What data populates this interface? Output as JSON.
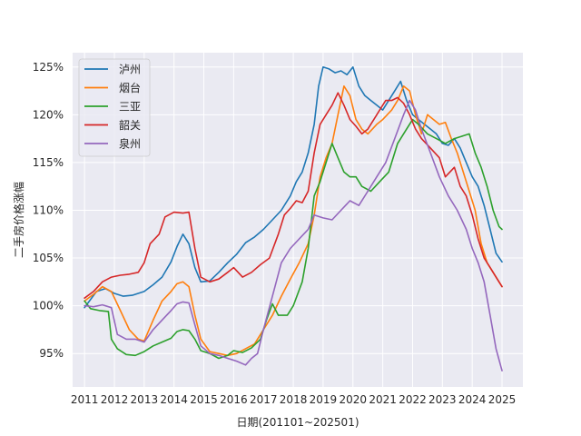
{
  "chart_data": {
    "type": "line",
    "xlabel": "日期(201101~202501)",
    "ylabel": "二手房价格涨幅",
    "xlim": [
      2010.6,
      2025.7
    ],
    "ylim": [
      91.5,
      126.5
    ],
    "xticks": [
      2011,
      2012,
      2013,
      2014,
      2015,
      2016,
      2017,
      2018,
      2019,
      2020,
      2021,
      2022,
      2023,
      2024,
      2025
    ],
    "xtick_labels": [
      "2011",
      "2012",
      "2013",
      "2014",
      "2015",
      "2016",
      "2017",
      "2018",
      "2019",
      "2020",
      "2021",
      "2022",
      "2023",
      "2024",
      "2025"
    ],
    "yticks": [
      95,
      100,
      105,
      110,
      115,
      120,
      125
    ],
    "ytick_labels": [
      "95%",
      "100%",
      "105%",
      "110%",
      "115%",
      "120%",
      "125%"
    ],
    "grid": true,
    "legend_position": "top-left",
    "series": [
      {
        "name": "泸州",
        "color": "#1f77b4",
        "points": [
          [
            2011.0,
            99.8
          ],
          [
            2011.4,
            101.5
          ],
          [
            2011.7,
            101.8
          ],
          [
            2012.0,
            101.3
          ],
          [
            2012.3,
            101.0
          ],
          [
            2012.6,
            101.1
          ],
          [
            2013.0,
            101.5
          ],
          [
            2013.3,
            102.2
          ],
          [
            2013.6,
            103.0
          ],
          [
            2013.9,
            104.6
          ],
          [
            2014.1,
            106.2
          ],
          [
            2014.3,
            107.5
          ],
          [
            2014.5,
            106.5
          ],
          [
            2014.7,
            104.0
          ],
          [
            2014.9,
            102.5
          ],
          [
            2015.2,
            102.6
          ],
          [
            2015.5,
            103.5
          ],
          [
            2015.8,
            104.5
          ],
          [
            2016.1,
            105.4
          ],
          [
            2016.4,
            106.6
          ],
          [
            2016.7,
            107.2
          ],
          [
            2017.0,
            108.0
          ],
          [
            2017.3,
            109.0
          ],
          [
            2017.6,
            110.0
          ],
          [
            2017.9,
            111.5
          ],
          [
            2018.1,
            113.0
          ],
          [
            2018.3,
            114.0
          ],
          [
            2018.5,
            116.0
          ],
          [
            2018.7,
            119.0
          ],
          [
            2018.85,
            123.0
          ],
          [
            2019.0,
            125.0
          ],
          [
            2019.2,
            124.8
          ],
          [
            2019.4,
            124.4
          ],
          [
            2019.6,
            124.6
          ],
          [
            2019.8,
            124.2
          ],
          [
            2020.0,
            125.0
          ],
          [
            2020.2,
            123.0
          ],
          [
            2020.4,
            122.0
          ],
          [
            2020.6,
            121.5
          ],
          [
            2020.8,
            121.0
          ],
          [
            2021.0,
            120.5
          ],
          [
            2021.2,
            121.5
          ],
          [
            2021.4,
            122.5
          ],
          [
            2021.6,
            123.5
          ],
          [
            2021.8,
            121.5
          ],
          [
            2022.0,
            120.0
          ],
          [
            2022.2,
            119.5
          ],
          [
            2022.4,
            119.0
          ],
          [
            2022.6,
            118.5
          ],
          [
            2022.8,
            118.0
          ],
          [
            2023.0,
            117.0
          ],
          [
            2023.2,
            116.8
          ],
          [
            2023.4,
            117.5
          ],
          [
            2023.6,
            116.5
          ],
          [
            2023.8,
            115.0
          ],
          [
            2024.0,
            113.5
          ],
          [
            2024.2,
            112.5
          ],
          [
            2024.4,
            110.5
          ],
          [
            2024.6,
            108.0
          ],
          [
            2024.8,
            105.5
          ],
          [
            2025.0,
            104.6
          ]
        ]
      },
      {
        "name": "烟台",
        "color": "#ff7f0e",
        "points": [
          [
            2011.0,
            100.5
          ],
          [
            2011.3,
            101.2
          ],
          [
            2011.6,
            102.0
          ],
          [
            2011.9,
            101.5
          ],
          [
            2012.2,
            99.5
          ],
          [
            2012.5,
            97.5
          ],
          [
            2012.8,
            96.5
          ],
          [
            2013.0,
            96.3
          ],
          [
            2013.3,
            98.5
          ],
          [
            2013.6,
            100.5
          ],
          [
            2013.9,
            101.5
          ],
          [
            2014.1,
            102.3
          ],
          [
            2014.3,
            102.5
          ],
          [
            2014.5,
            102.0
          ],
          [
            2014.7,
            99.0
          ],
          [
            2014.9,
            96.5
          ],
          [
            2015.2,
            95.2
          ],
          [
            2015.5,
            95.0
          ],
          [
            2015.8,
            94.8
          ],
          [
            2016.1,
            95.0
          ],
          [
            2016.4,
            95.5
          ],
          [
            2016.7,
            96.0
          ],
          [
            2017.0,
            97.5
          ],
          [
            2017.3,
            99.0
          ],
          [
            2017.6,
            101.0
          ],
          [
            2017.9,
            102.8
          ],
          [
            2018.2,
            104.5
          ],
          [
            2018.5,
            106.5
          ],
          [
            2018.7,
            109.5
          ],
          [
            2018.9,
            113.5
          ],
          [
            2019.1,
            115.5
          ],
          [
            2019.3,
            117.0
          ],
          [
            2019.5,
            120.0
          ],
          [
            2019.7,
            123.0
          ],
          [
            2019.9,
            122.0
          ],
          [
            2020.1,
            119.5
          ],
          [
            2020.3,
            118.5
          ],
          [
            2020.5,
            118.0
          ],
          [
            2020.8,
            119.0
          ],
          [
            2021.0,
            119.5
          ],
          [
            2021.3,
            120.5
          ],
          [
            2021.5,
            121.5
          ],
          [
            2021.7,
            123.0
          ],
          [
            2021.9,
            122.5
          ],
          [
            2022.1,
            120.0
          ],
          [
            2022.3,
            118.0
          ],
          [
            2022.5,
            120.0
          ],
          [
            2022.7,
            119.5
          ],
          [
            2022.9,
            119.0
          ],
          [
            2023.1,
            119.2
          ],
          [
            2023.3,
            117.5
          ],
          [
            2023.5,
            116.0
          ],
          [
            2023.7,
            114.0
          ],
          [
            2023.9,
            112.0
          ],
          [
            2024.1,
            110.0
          ],
          [
            2024.3,
            106.5
          ],
          [
            2024.5,
            104.5
          ],
          [
            2024.7,
            103.5
          ],
          [
            2024.9,
            102.5
          ],
          [
            2025.0,
            102.0
          ]
        ]
      },
      {
        "name": "三亚",
        "color": "#2ca02c",
        "points": [
          [
            2011.0,
            100.5
          ],
          [
            2011.2,
            99.7
          ],
          [
            2011.5,
            99.5
          ],
          [
            2011.8,
            99.4
          ],
          [
            2011.9,
            96.5
          ],
          [
            2012.1,
            95.5
          ],
          [
            2012.4,
            94.9
          ],
          [
            2012.7,
            94.8
          ],
          [
            2013.0,
            95.2
          ],
          [
            2013.3,
            95.8
          ],
          [
            2013.6,
            96.2
          ],
          [
            2013.9,
            96.6
          ],
          [
            2014.1,
            97.3
          ],
          [
            2014.3,
            97.5
          ],
          [
            2014.5,
            97.4
          ],
          [
            2014.7,
            96.5
          ],
          [
            2014.9,
            95.3
          ],
          [
            2015.2,
            95.0
          ],
          [
            2015.5,
            94.5
          ],
          [
            2015.8,
            94.8
          ],
          [
            2016.0,
            95.3
          ],
          [
            2016.3,
            95.1
          ],
          [
            2016.6,
            95.6
          ],
          [
            2016.9,
            96.5
          ],
          [
            2017.1,
            98.5
          ],
          [
            2017.3,
            100.2
          ],
          [
            2017.5,
            99.0
          ],
          [
            2017.8,
            99.0
          ],
          [
            2018.0,
            100.0
          ],
          [
            2018.3,
            102.5
          ],
          [
            2018.5,
            106.0
          ],
          [
            2018.7,
            111.5
          ],
          [
            2018.9,
            113.0
          ],
          [
            2019.1,
            115.0
          ],
          [
            2019.3,
            117.0
          ],
          [
            2019.5,
            115.5
          ],
          [
            2019.7,
            114.0
          ],
          [
            2019.9,
            113.5
          ],
          [
            2020.1,
            113.5
          ],
          [
            2020.3,
            112.5
          ],
          [
            2020.6,
            112.0
          ],
          [
            2020.9,
            113.0
          ],
          [
            2021.2,
            114.0
          ],
          [
            2021.5,
            117.0
          ],
          [
            2021.8,
            118.5
          ],
          [
            2022.0,
            119.5
          ],
          [
            2022.2,
            119.0
          ],
          [
            2022.5,
            118.0
          ],
          [
            2022.8,
            117.5
          ],
          [
            2023.1,
            117.0
          ],
          [
            2023.4,
            117.5
          ],
          [
            2023.7,
            117.8
          ],
          [
            2023.9,
            118.0
          ],
          [
            2024.1,
            116.0
          ],
          [
            2024.3,
            114.5
          ],
          [
            2024.5,
            112.5
          ],
          [
            2024.7,
            110.0
          ],
          [
            2024.9,
            108.3
          ],
          [
            2025.0,
            108.0
          ]
        ]
      },
      {
        "name": "韶关",
        "color": "#d62728",
        "points": [
          [
            2011.0,
            100.8
          ],
          [
            2011.3,
            101.5
          ],
          [
            2011.6,
            102.5
          ],
          [
            2011.9,
            103.0
          ],
          [
            2012.2,
            103.2
          ],
          [
            2012.5,
            103.3
          ],
          [
            2012.8,
            103.5
          ],
          [
            2013.0,
            104.5
          ],
          [
            2013.2,
            106.5
          ],
          [
            2013.5,
            107.5
          ],
          [
            2013.7,
            109.3
          ],
          [
            2014.0,
            109.8
          ],
          [
            2014.3,
            109.7
          ],
          [
            2014.5,
            109.8
          ],
          [
            2014.7,
            106.0
          ],
          [
            2014.9,
            103.0
          ],
          [
            2015.2,
            102.5
          ],
          [
            2015.5,
            102.8
          ],
          [
            2015.8,
            103.5
          ],
          [
            2016.0,
            104.0
          ],
          [
            2016.3,
            103.0
          ],
          [
            2016.6,
            103.5
          ],
          [
            2016.9,
            104.3
          ],
          [
            2017.2,
            105.0
          ],
          [
            2017.5,
            107.5
          ],
          [
            2017.7,
            109.5
          ],
          [
            2017.9,
            110.2
          ],
          [
            2018.1,
            111.0
          ],
          [
            2018.3,
            110.8
          ],
          [
            2018.5,
            112.0
          ],
          [
            2018.7,
            116.0
          ],
          [
            2018.9,
            119.0
          ],
          [
            2019.1,
            120.0
          ],
          [
            2019.3,
            121.0
          ],
          [
            2019.5,
            122.3
          ],
          [
            2019.7,
            121.0
          ],
          [
            2019.9,
            119.5
          ],
          [
            2020.1,
            118.8
          ],
          [
            2020.3,
            118.0
          ],
          [
            2020.5,
            118.5
          ],
          [
            2020.7,
            119.5
          ],
          [
            2020.9,
            120.5
          ],
          [
            2021.1,
            121.5
          ],
          [
            2021.3,
            121.5
          ],
          [
            2021.5,
            121.8
          ],
          [
            2021.7,
            121.2
          ],
          [
            2021.9,
            120.0
          ],
          [
            2022.1,
            118.5
          ],
          [
            2022.3,
            117.5
          ],
          [
            2022.6,
            116.5
          ],
          [
            2022.9,
            115.5
          ],
          [
            2023.1,
            113.5
          ],
          [
            2023.4,
            114.5
          ],
          [
            2023.6,
            112.5
          ],
          [
            2023.8,
            111.5
          ],
          [
            2024.0,
            109.5
          ],
          [
            2024.2,
            107.0
          ],
          [
            2024.4,
            105.0
          ],
          [
            2024.6,
            104.0
          ],
          [
            2024.8,
            103.0
          ],
          [
            2025.0,
            102.0
          ]
        ]
      },
      {
        "name": "泉州",
        "color": "#9467bd",
        "points": [
          [
            2011.0,
            100.0
          ],
          [
            2011.3,
            99.9
          ],
          [
            2011.6,
            100.1
          ],
          [
            2011.9,
            99.8
          ],
          [
            2012.1,
            97.0
          ],
          [
            2012.4,
            96.5
          ],
          [
            2012.7,
            96.5
          ],
          [
            2013.0,
            96.2
          ],
          [
            2013.3,
            97.5
          ],
          [
            2013.6,
            98.5
          ],
          [
            2013.9,
            99.5
          ],
          [
            2014.1,
            100.2
          ],
          [
            2014.3,
            100.4
          ],
          [
            2014.5,
            100.3
          ],
          [
            2014.7,
            98.0
          ],
          [
            2014.9,
            95.8
          ],
          [
            2015.2,
            95.0
          ],
          [
            2015.5,
            94.8
          ],
          [
            2015.8,
            94.5
          ],
          [
            2016.1,
            94.2
          ],
          [
            2016.4,
            93.8
          ],
          [
            2016.6,
            94.5
          ],
          [
            2016.8,
            95.0
          ],
          [
            2017.0,
            97.5
          ],
          [
            2017.3,
            101.0
          ],
          [
            2017.6,
            104.5
          ],
          [
            2017.9,
            106.0
          ],
          [
            2018.2,
            107.0
          ],
          [
            2018.5,
            108.0
          ],
          [
            2018.7,
            109.5
          ],
          [
            2019.0,
            109.2
          ],
          [
            2019.3,
            109.0
          ],
          [
            2019.6,
            110.0
          ],
          [
            2019.9,
            111.0
          ],
          [
            2020.2,
            110.5
          ],
          [
            2020.5,
            112.0
          ],
          [
            2020.8,
            113.5
          ],
          [
            2021.1,
            115.0
          ],
          [
            2021.4,
            117.5
          ],
          [
            2021.7,
            120.0
          ],
          [
            2021.9,
            121.5
          ],
          [
            2022.1,
            120.5
          ],
          [
            2022.3,
            118.5
          ],
          [
            2022.6,
            116.0
          ],
          [
            2022.9,
            113.5
          ],
          [
            2023.2,
            111.5
          ],
          [
            2023.5,
            110.0
          ],
          [
            2023.8,
            108.0
          ],
          [
            2024.0,
            106.0
          ],
          [
            2024.2,
            104.5
          ],
          [
            2024.4,
            102.5
          ],
          [
            2024.6,
            99.0
          ],
          [
            2024.8,
            95.5
          ],
          [
            2025.0,
            93.2
          ]
        ]
      }
    ]
  }
}
